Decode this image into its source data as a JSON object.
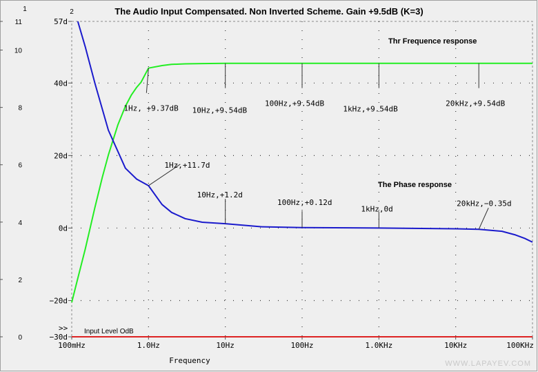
{
  "chart_data": {
    "type": "line",
    "title": "The Audio Input Compensated. Non Inverted Scheme. Gain +9.5dB (K=3)",
    "xlabel": "Frequency",
    "x_scale": "log",
    "xlim_hz": [
      0.1,
      100000
    ],
    "x_ticks": [
      {
        "hz": 0.1,
        "label": "100mHz"
      },
      {
        "hz": 1,
        "label": "1.0Hz"
      },
      {
        "hz": 10,
        "label": "10Hz"
      },
      {
        "hz": 100,
        "label": "100Hz"
      },
      {
        "hz": 1000,
        "label": "1.0KHz"
      },
      {
        "hz": 10000,
        "label": "10KHz"
      },
      {
        "hz": 100000,
        "label": "100KHz"
      }
    ],
    "axis1": {
      "marker": "1",
      "range": [
        0,
        11
      ],
      "ticks": [
        {
          "v": 0,
          "label": "0"
        },
        {
          "v": 2,
          "label": "2"
        },
        {
          "v": 4,
          "label": "4"
        },
        {
          "v": 6,
          "label": "6"
        },
        {
          "v": 8,
          "label": "8"
        },
        {
          "v": 10,
          "label": "10"
        },
        {
          "v": 11,
          "label": "11"
        }
      ]
    },
    "axis2": {
      "marker": "2",
      "range": [
        -30,
        57
      ],
      "ticks": [
        {
          "v": -30,
          "label": "−30d"
        },
        {
          "v": -20,
          "label": "−20d"
        },
        {
          "v": 0,
          "label": "0d"
        },
        {
          "v": 20,
          "label": "20d"
        },
        {
          "v": 40,
          "label": "40d"
        },
        {
          "v": 57,
          "label": "57d"
        }
      ]
    },
    "axis_marker_arrow": ">>",
    "series": [
      {
        "name": "Thr Frequence response",
        "color": "#22ee22",
        "axis": "axis1",
        "points": [
          [
            0.1,
            1.2
          ],
          [
            0.12,
            2.04
          ],
          [
            0.15,
            3.06
          ],
          [
            0.2,
            4.5
          ],
          [
            0.25,
            5.56
          ],
          [
            0.3,
            6.34
          ],
          [
            0.4,
            7.4
          ],
          [
            0.5,
            8.04
          ],
          [
            0.6,
            8.44
          ],
          [
            0.7,
            8.7
          ],
          [
            0.8,
            8.88
          ],
          [
            1,
            9.37
          ],
          [
            1.5,
            9.46
          ],
          [
            2,
            9.5
          ],
          [
            3,
            9.52
          ],
          [
            5,
            9.53
          ],
          [
            10,
            9.54
          ],
          [
            100,
            9.54
          ],
          [
            1000,
            9.54
          ],
          [
            10000,
            9.54
          ],
          [
            20000,
            9.54
          ],
          [
            100000,
            9.54
          ]
        ]
      },
      {
        "name": "The Phase response",
        "color": "#1a1acc",
        "axis": "axis2",
        "points": [
          [
            0.12,
            57
          ],
          [
            0.15,
            50
          ],
          [
            0.2,
            40
          ],
          [
            0.3,
            27
          ],
          [
            0.5,
            16.5
          ],
          [
            0.7,
            13.5
          ],
          [
            1,
            11.7
          ],
          [
            1.5,
            6.5
          ],
          [
            2,
            4.3
          ],
          [
            3,
            2.6
          ],
          [
            5,
            1.6
          ],
          [
            10,
            1.2
          ],
          [
            30,
            0.35
          ],
          [
            100,
            0.12
          ],
          [
            1000,
            0
          ],
          [
            10000,
            -0.2
          ],
          [
            20000,
            -0.35
          ],
          [
            40000,
            -0.9
          ],
          [
            60000,
            -1.9
          ],
          [
            80000,
            -2.9
          ],
          [
            100000,
            -3.9
          ]
        ]
      },
      {
        "name": "Input Level OdB",
        "color": "#dd2222",
        "axis": "axis1",
        "points": [
          [
            0.1,
            0
          ],
          [
            100000,
            0
          ]
        ]
      }
    ],
    "annotations": [
      {
        "text": "1Hz, +9.37dB",
        "hz": 1,
        "axis": "axis1",
        "v": 9.37
      },
      {
        "text": "10Hz,+9.54dB",
        "hz": 10,
        "axis": "axis1",
        "v": 9.54
      },
      {
        "text": "100Hz,+9.54dB",
        "hz": 100,
        "axis": "axis1",
        "v": 9.54
      },
      {
        "text": "1kHz,+9.54dB",
        "hz": 1000,
        "axis": "axis1",
        "v": 9.54
      },
      {
        "text": "20kHz,+9.54dB",
        "hz": 20000,
        "axis": "axis1",
        "v": 9.54
      },
      {
        "text": "1Hz,+11.7d",
        "hz": 1,
        "axis": "axis2",
        "v": 11.7
      },
      {
        "text": "10Hz,+1.2d",
        "hz": 10,
        "axis": "axis2",
        "v": 1.2
      },
      {
        "text": "100Hz,+0.12d",
        "hz": 100,
        "axis": "axis2",
        "v": 0.12
      },
      {
        "text": "1kHz,0d",
        "hz": 1000,
        "axis": "axis2",
        "v": 0
      },
      {
        "text": "20kHz,−0.35d",
        "hz": 20000,
        "axis": "axis2",
        "v": -0.35
      }
    ],
    "grid": "dotted",
    "watermark": "WWW.LAPAYEV.COM"
  }
}
